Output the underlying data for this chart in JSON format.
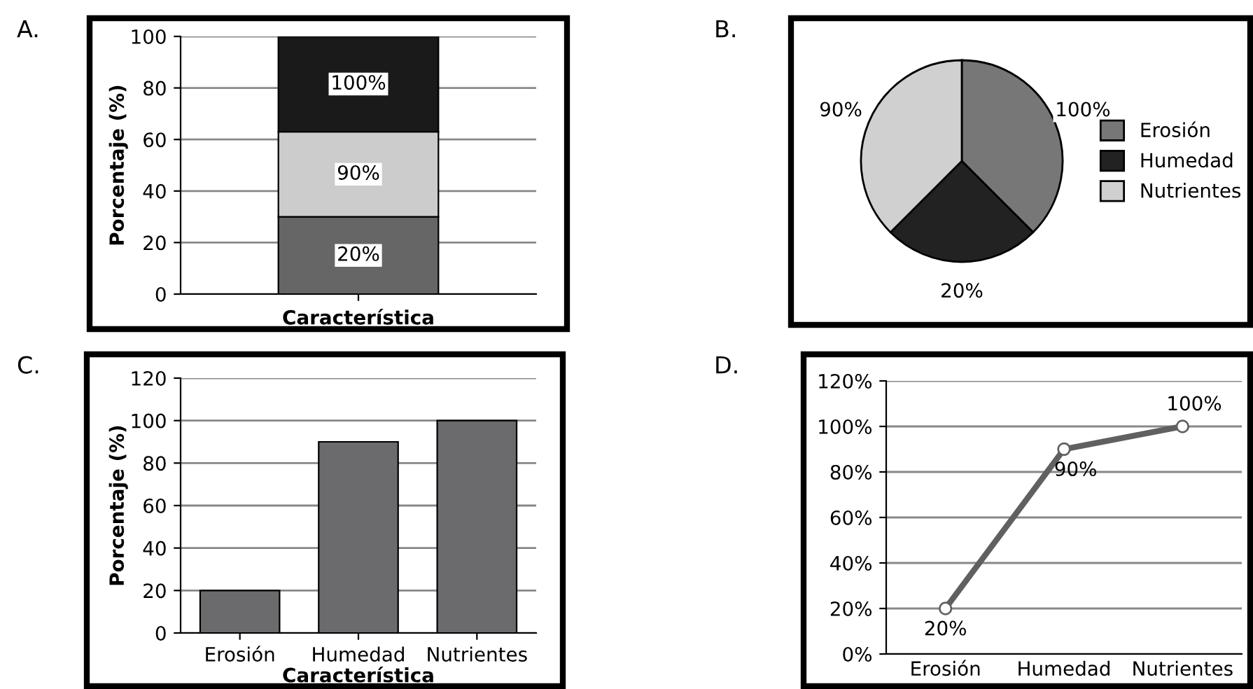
{
  "chart_data": [
    {
      "type": "bar",
      "title": "A.",
      "stacked": true,
      "xlabel": "Característica",
      "ylabel": "Porcentaje (%)",
      "categories": [
        null
      ],
      "ylim": [
        0,
        100
      ],
      "yticks": [
        0,
        20,
        40,
        60,
        80,
        100
      ],
      "grid": "y",
      "series": [
        {
          "color": "#666666",
          "values": [
            30
          ]
        },
        {
          "color": "#cccccc",
          "values": [
            33
          ]
        },
        {
          "color": "#1a1a1a",
          "values": [
            37
          ]
        }
      ],
      "annotations": [
        {
          "text": "20%",
          "y": 15
        },
        {
          "text": "90%",
          "y": 46.5
        },
        {
          "text": "100%",
          "y": 81.5
        }
      ]
    },
    {
      "type": "pie",
      "title": "B.",
      "categories": [
        "Erosión",
        "Humedad",
        "Nutrientes"
      ],
      "values": [
        37.5,
        25,
        37.5
      ],
      "colors": [
        "#777777",
        "#222222",
        "#d0d0d0"
      ],
      "annotations": [
        "100%",
        "20%",
        "90%"
      ],
      "legend": "right"
    },
    {
      "type": "bar",
      "title": "C.",
      "xlabel": "Característica",
      "ylabel": "Porcentaje (%)",
      "categories": [
        "Erosión",
        "Humedad",
        "Nutrientes"
      ],
      "values": [
        20,
        90,
        100
      ],
      "color": "#6b6b6e",
      "ylim": [
        0,
        120
      ],
      "yticks": [
        0,
        20,
        40,
        60,
        80,
        100,
        120
      ],
      "grid": "y"
    },
    {
      "type": "line",
      "title": "D.",
      "categories": [
        "Erosión",
        "Humedad",
        "Nutrientes"
      ],
      "values": [
        20,
        90,
        100
      ],
      "color": "#606060",
      "marker": "circle",
      "value_labels": [
        "20%",
        "90%",
        "100%"
      ],
      "ylim": [
        0,
        120
      ],
      "yticks": [
        {
          "value": 0,
          "label": "0%"
        },
        {
          "value": 20,
          "label": "20%"
        },
        {
          "value": 40,
          "label": "40%"
        },
        {
          "value": 60,
          "label": "60%"
        },
        {
          "value": 80,
          "label": "80%"
        },
        {
          "value": 100,
          "label": "100%"
        },
        {
          "value": 120,
          "label": "120%"
        }
      ],
      "grid": "y"
    }
  ]
}
